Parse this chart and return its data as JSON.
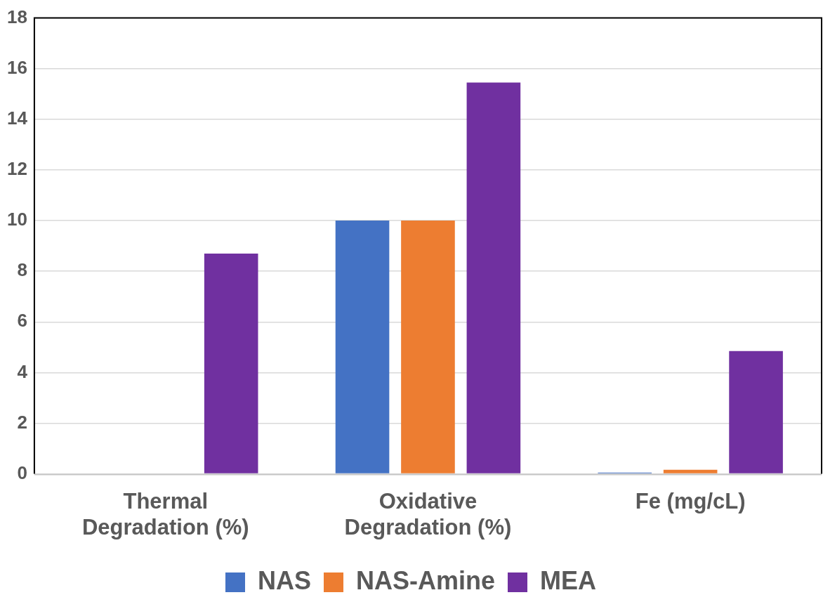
{
  "chart_data": {
    "type": "bar",
    "categories": [
      "Thermal Degradation (%)",
      "Oxidative Degradation (%)",
      "Fe (mg/cL)"
    ],
    "series": [
      {
        "name": "NAS",
        "color": "#4472c4",
        "values": [
          0,
          10,
          0.05
        ]
      },
      {
        "name": "NAS-Amine",
        "color": "#ed7d31",
        "values": [
          0,
          10,
          0.16
        ]
      },
      {
        "name": "MEA",
        "color": "#7030a0",
        "values": [
          8.7,
          15.45,
          4.85
        ]
      }
    ],
    "ylim": [
      0,
      18
    ],
    "yticks": [
      0,
      2,
      4,
      6,
      8,
      10,
      12,
      14,
      16,
      18
    ],
    "grid": "y",
    "legend": "bottom"
  }
}
